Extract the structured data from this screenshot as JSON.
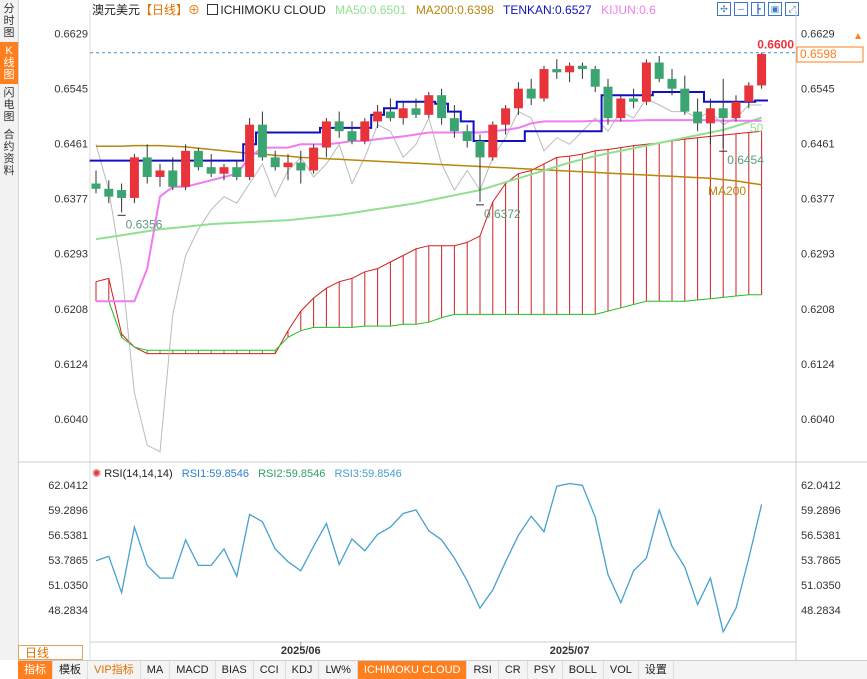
{
  "sidebar": {
    "tabs": [
      {
        "label": "分时图",
        "active": false
      },
      {
        "label": "K线图",
        "active": true
      },
      {
        "label": "闪电图",
        "active": false
      },
      {
        "label": "合约资料",
        "active": false
      }
    ]
  },
  "legend": {
    "symbol": "澳元美元",
    "period": "【日线】",
    "indicator": "ICHIMOKU CLOUD",
    "ma50": "MA50:0.6501",
    "ma200": "MA200:0.6398",
    "tenkan": "TENKAN:0.6527",
    "kijun": "KIJUN:0.6"
  },
  "rsi_legend": {
    "title": "RSI(14,14,14)",
    "rsi1": "RSI1:59.8546",
    "rsi2": "RSI2:59.8546",
    "rsi3": "RSI3:59.8546"
  },
  "colors": {
    "up": "#e8333a",
    "down": "#3aa570",
    "ma50": "#90e090",
    "ma200": "#b8860b",
    "tenkan": "#1010c0",
    "kijun": "#f07cf0",
    "cloud_up": "#d02020",
    "cloud_down": "#20c020",
    "rsi": "#46a0d0",
    "accent": "#ff7f1e"
  },
  "chart_data": [
    {
      "type": "candlestick",
      "y_ticks": [
        "0.6629",
        "0.6545",
        "0.6461",
        "0.6377",
        "0.6293",
        "0.6208",
        "0.6124",
        "0.6040"
      ],
      "ylim": [
        0.5985,
        0.665
      ],
      "x_labels": [
        {
          "index": 16,
          "label": "2025/06"
        },
        {
          "index": 37,
          "label": "2025/07"
        }
      ],
      "current_price": "0.6600",
      "last_close_box": "0.6598",
      "annotations": [
        {
          "index": 2,
          "value": "0.6356"
        },
        {
          "index": 30,
          "value": "0.6372"
        },
        {
          "index": 49,
          "value": "0.6454"
        },
        {
          "index": 50,
          "value": "50"
        },
        {
          "index": 50,
          "value": "MA200"
        }
      ],
      "candles": [
        {
          "o": 0.64,
          "h": 0.642,
          "l": 0.6385,
          "c": 0.6392
        },
        {
          "o": 0.6392,
          "h": 0.6405,
          "l": 0.637,
          "c": 0.638
        },
        {
          "o": 0.639,
          "h": 0.64,
          "l": 0.6356,
          "c": 0.6378
        },
        {
          "o": 0.6378,
          "h": 0.6445,
          "l": 0.637,
          "c": 0.644
        },
        {
          "o": 0.644,
          "h": 0.646,
          "l": 0.64,
          "c": 0.641
        },
        {
          "o": 0.641,
          "h": 0.643,
          "l": 0.6395,
          "c": 0.642
        },
        {
          "o": 0.642,
          "h": 0.644,
          "l": 0.639,
          "c": 0.6395
        },
        {
          "o": 0.6395,
          "h": 0.646,
          "l": 0.639,
          "c": 0.645
        },
        {
          "o": 0.645,
          "h": 0.6455,
          "l": 0.642,
          "c": 0.6425
        },
        {
          "o": 0.6425,
          "h": 0.6445,
          "l": 0.641,
          "c": 0.6415
        },
        {
          "o": 0.6415,
          "h": 0.643,
          "l": 0.6405,
          "c": 0.6425
        },
        {
          "o": 0.6425,
          "h": 0.6435,
          "l": 0.6405,
          "c": 0.641
        },
        {
          "o": 0.641,
          "h": 0.65,
          "l": 0.6405,
          "c": 0.649
        },
        {
          "o": 0.649,
          "h": 0.651,
          "l": 0.6435,
          "c": 0.644
        },
        {
          "o": 0.644,
          "h": 0.645,
          "l": 0.642,
          "c": 0.6425
        },
        {
          "o": 0.6425,
          "h": 0.6445,
          "l": 0.6405,
          "c": 0.6432
        },
        {
          "o": 0.6432,
          "h": 0.645,
          "l": 0.64,
          "c": 0.642
        },
        {
          "o": 0.642,
          "h": 0.646,
          "l": 0.6415,
          "c": 0.6455
        },
        {
          "o": 0.6455,
          "h": 0.65,
          "l": 0.644,
          "c": 0.6495
        },
        {
          "o": 0.6495,
          "h": 0.651,
          "l": 0.647,
          "c": 0.648
        },
        {
          "o": 0.648,
          "h": 0.6495,
          "l": 0.646,
          "c": 0.6465
        },
        {
          "o": 0.6465,
          "h": 0.65,
          "l": 0.646,
          "c": 0.6495
        },
        {
          "o": 0.6495,
          "h": 0.652,
          "l": 0.6485,
          "c": 0.651
        },
        {
          "o": 0.651,
          "h": 0.653,
          "l": 0.6495,
          "c": 0.65
        },
        {
          "o": 0.65,
          "h": 0.6525,
          "l": 0.649,
          "c": 0.6515
        },
        {
          "o": 0.6515,
          "h": 0.653,
          "l": 0.65,
          "c": 0.6505
        },
        {
          "o": 0.6505,
          "h": 0.654,
          "l": 0.65,
          "c": 0.6535
        },
        {
          "o": 0.6535,
          "h": 0.6545,
          "l": 0.649,
          "c": 0.65
        },
        {
          "o": 0.65,
          "h": 0.652,
          "l": 0.647,
          "c": 0.648
        },
        {
          "o": 0.648,
          "h": 0.649,
          "l": 0.6455,
          "c": 0.6465
        },
        {
          "o": 0.6465,
          "h": 0.6475,
          "l": 0.6372,
          "c": 0.644
        },
        {
          "o": 0.644,
          "h": 0.6495,
          "l": 0.6435,
          "c": 0.649
        },
        {
          "o": 0.649,
          "h": 0.652,
          "l": 0.6475,
          "c": 0.6515
        },
        {
          "o": 0.6515,
          "h": 0.6555,
          "l": 0.6505,
          "c": 0.6545
        },
        {
          "o": 0.6545,
          "h": 0.656,
          "l": 0.652,
          "c": 0.653
        },
        {
          "o": 0.653,
          "h": 0.658,
          "l": 0.6525,
          "c": 0.6575
        },
        {
          "o": 0.6575,
          "h": 0.659,
          "l": 0.656,
          "c": 0.657
        },
        {
          "o": 0.657,
          "h": 0.6585,
          "l": 0.6555,
          "c": 0.658
        },
        {
          "o": 0.658,
          "h": 0.6585,
          "l": 0.656,
          "c": 0.6575
        },
        {
          "o": 0.6575,
          "h": 0.658,
          "l": 0.654,
          "c": 0.6548
        },
        {
          "o": 0.6548,
          "h": 0.656,
          "l": 0.649,
          "c": 0.65
        },
        {
          "o": 0.65,
          "h": 0.6535,
          "l": 0.6495,
          "c": 0.653
        },
        {
          "o": 0.653,
          "h": 0.6545,
          "l": 0.6515,
          "c": 0.6525
        },
        {
          "o": 0.6525,
          "h": 0.659,
          "l": 0.652,
          "c": 0.6585
        },
        {
          "o": 0.6585,
          "h": 0.6595,
          "l": 0.6555,
          "c": 0.656
        },
        {
          "o": 0.656,
          "h": 0.6575,
          "l": 0.6535,
          "c": 0.6545
        },
        {
          "o": 0.6545,
          "h": 0.6565,
          "l": 0.6505,
          "c": 0.651
        },
        {
          "o": 0.651,
          "h": 0.653,
          "l": 0.648,
          "c": 0.6492
        },
        {
          "o": 0.6492,
          "h": 0.653,
          "l": 0.646,
          "c": 0.6515
        },
        {
          "o": 0.6515,
          "h": 0.656,
          "l": 0.6454,
          "c": 0.65
        },
        {
          "o": 0.65,
          "h": 0.6535,
          "l": 0.6495,
          "c": 0.6525
        },
        {
          "o": 0.6525,
          "h": 0.6555,
          "l": 0.6515,
          "c": 0.655
        },
        {
          "o": 0.655,
          "h": 0.66,
          "l": 0.6545,
          "c": 0.6598
        }
      ],
      "ma50": [
        0.6315,
        0.6318,
        0.6321,
        0.6324,
        0.6327,
        0.633,
        0.6332,
        0.6334,
        0.6336,
        0.6338,
        0.6339,
        0.634,
        0.6341,
        0.6342,
        0.6343,
        0.6344,
        0.6346,
        0.6348,
        0.635,
        0.6352,
        0.6355,
        0.6358,
        0.6361,
        0.6364,
        0.6367,
        0.637,
        0.6374,
        0.6378,
        0.6382,
        0.6386,
        0.639,
        0.6396,
        0.6402,
        0.6408,
        0.6414,
        0.642,
        0.6426,
        0.6432,
        0.6437,
        0.6442,
        0.6446,
        0.645,
        0.6454,
        0.6458,
        0.6462,
        0.6466,
        0.647,
        0.6474,
        0.6478,
        0.6482,
        0.6488,
        0.6494,
        0.6501
      ],
      "ma200": [
        0.6457,
        0.6457,
        0.6457,
        0.6458,
        0.6458,
        0.6458,
        0.6457,
        0.6456,
        0.6454,
        0.6452,
        0.645,
        0.6448,
        0.6446,
        0.6445,
        0.6443,
        0.6442,
        0.644,
        0.6439,
        0.6438,
        0.6437,
        0.6436,
        0.6435,
        0.6434,
        0.6433,
        0.6432,
        0.6431,
        0.643,
        0.6429,
        0.6428,
        0.6427,
        0.6426,
        0.6425,
        0.6424,
        0.6423,
        0.6422,
        0.6421,
        0.642,
        0.6419,
        0.6418,
        0.6417,
        0.6416,
        0.6415,
        0.6414,
        0.6413,
        0.6412,
        0.6411,
        0.641,
        0.6409,
        0.6408,
        0.6406,
        0.6404,
        0.6401,
        0.6398
      ],
      "tenkan": [
        0.6435,
        0.6435,
        0.6435,
        0.6435,
        0.6435,
        0.6435,
        0.6435,
        0.6435,
        0.6435,
        0.6435,
        0.6435,
        0.6435,
        0.646,
        0.6478,
        0.6478,
        0.6478,
        0.6478,
        0.6478,
        0.6485,
        0.6485,
        0.6485,
        0.6485,
        0.6505,
        0.6515,
        0.6525,
        0.6525,
        0.6525,
        0.6522,
        0.651,
        0.6495,
        0.6465,
        0.6465,
        0.6465,
        0.6465,
        0.648,
        0.648,
        0.648,
        0.648,
        0.648,
        0.648,
        0.6535,
        0.6535,
        0.6535,
        0.6535,
        0.654,
        0.654,
        0.654,
        0.654,
        0.6525,
        0.6525,
        0.6525,
        0.6525,
        0.6527
      ],
      "kijun": [
        0.622,
        0.622,
        0.622,
        0.622,
        0.627,
        0.638,
        0.6395,
        0.6395,
        0.64,
        0.6405,
        0.641,
        0.6415,
        0.644,
        0.6455,
        0.6455,
        0.6455,
        0.646,
        0.646,
        0.646,
        0.6462,
        0.6465,
        0.6465,
        0.6468,
        0.647,
        0.6472,
        0.6475,
        0.6478,
        0.6478,
        0.6478,
        0.6478,
        0.6478,
        0.648,
        0.6482,
        0.6485,
        0.6492,
        0.6495,
        0.6495,
        0.6495,
        0.6495,
        0.6496,
        0.6496,
        0.6496,
        0.6496,
        0.6497,
        0.6497,
        0.6497,
        0.6497,
        0.6497,
        0.6497,
        0.6496,
        0.6496,
        0.6496,
        0.6496
      ],
      "chikou": [
        0.646,
        0.639,
        0.627,
        0.608,
        0.6,
        0.599,
        0.62,
        0.629,
        0.633,
        0.636,
        0.638,
        0.637,
        0.64,
        0.643,
        0.638,
        0.642,
        0.644,
        0.641,
        0.643,
        0.646,
        0.64,
        0.644,
        0.649,
        0.648,
        0.644,
        0.646,
        0.65,
        0.643,
        0.639,
        0.642,
        0.639,
        0.644,
        0.647,
        0.651,
        0.65,
        0.645,
        0.647,
        0.646,
        0.648,
        0.65,
        0.648,
        0.651,
        0.65,
        0.653,
        0.652,
        0.651,
        0.651,
        0.65,
        0.651,
        0.649,
        0.65,
        0.652,
        0.652
      ],
      "senkou_a": [
        0.625,
        0.6255,
        0.617,
        0.615,
        0.614,
        0.614,
        0.614,
        0.614,
        0.614,
        0.614,
        0.614,
        0.614,
        0.614,
        0.614,
        0.614,
        0.6175,
        0.6205,
        0.6225,
        0.624,
        0.625,
        0.6255,
        0.6265,
        0.627,
        0.628,
        0.629,
        0.63,
        0.6305,
        0.6305,
        0.6305,
        0.631,
        0.632,
        0.6372,
        0.64,
        0.6415,
        0.642,
        0.643,
        0.644,
        0.6442,
        0.6445,
        0.645,
        0.6452,
        0.6455,
        0.6458,
        0.646,
        0.6462,
        0.6465,
        0.6468,
        0.647,
        0.6472,
        0.6474,
        0.6476,
        0.6478,
        0.648
      ],
      "senkou_b": [
        0.622,
        0.622,
        0.6165,
        0.615,
        0.6145,
        0.6145,
        0.6145,
        0.6145,
        0.6145,
        0.6145,
        0.6145,
        0.6145,
        0.6145,
        0.6145,
        0.6145,
        0.6165,
        0.6175,
        0.618,
        0.618,
        0.618,
        0.618,
        0.6182,
        0.6182,
        0.6182,
        0.6185,
        0.6185,
        0.6188,
        0.6195,
        0.62,
        0.62,
        0.62,
        0.62,
        0.62,
        0.62,
        0.62,
        0.62,
        0.62,
        0.62,
        0.62,
        0.62,
        0.6205,
        0.621,
        0.6215,
        0.622,
        0.622,
        0.622,
        0.622,
        0.6222,
        0.6224,
        0.6226,
        0.6228,
        0.623,
        0.623
      ]
    },
    {
      "type": "line",
      "name": "RSI",
      "y_ticks": [
        "62.0412",
        "59.2896",
        "56.5381",
        "53.7865",
        "51.0350",
        "48.2834"
      ],
      "ylim": [
        45.0,
        62.8
      ],
      "values": [
        53.7,
        54.2,
        50.2,
        57.4,
        53.2,
        51.8,
        51.8,
        56.0,
        53.2,
        53.2,
        55.0,
        52.0,
        58.8,
        58.0,
        55.0,
        53.6,
        52.6,
        55.3,
        57.8,
        53.3,
        56.1,
        54.8,
        56.6,
        57.4,
        58.9,
        59.3,
        57.0,
        56.0,
        54.0,
        51.5,
        48.5,
        50.5,
        53.6,
        56.5,
        58.6,
        56.9,
        61.9,
        62.2,
        62.0,
        58.5,
        52.2,
        49.1,
        52.6,
        54.0,
        59.3,
        55.3,
        53.0,
        48.9,
        51.8,
        45.9,
        48.5,
        54.0,
        59.9
      ]
    }
  ],
  "bottom_bar": {
    "period": "日线",
    "items": [
      {
        "label": "指标",
        "active": true,
        "vip": false
      },
      {
        "label": "模板",
        "active": false,
        "vip": false
      },
      {
        "label": "VIP指标",
        "active": false,
        "vip": true
      },
      {
        "label": "MA",
        "active": false,
        "vip": false
      },
      {
        "label": "MACD",
        "active": false,
        "vip": false
      },
      {
        "label": "BIAS",
        "active": false,
        "vip": false
      },
      {
        "label": "CCI",
        "active": false,
        "vip": false
      },
      {
        "label": "KDJ",
        "active": false,
        "vip": false
      },
      {
        "label": "LW%",
        "active": false,
        "vip": false
      },
      {
        "label": "ICHIMOKU CLOUD",
        "active": true,
        "vip": false
      },
      {
        "label": "RSI",
        "active": false,
        "vip": false
      },
      {
        "label": "CR",
        "active": false,
        "vip": false
      },
      {
        "label": "PSY",
        "active": false,
        "vip": false
      },
      {
        "label": "BOLL",
        "active": false,
        "vip": false
      },
      {
        "label": "VOL",
        "active": false,
        "vip": false
      },
      {
        "label": "设置",
        "active": false,
        "vip": false
      }
    ]
  }
}
